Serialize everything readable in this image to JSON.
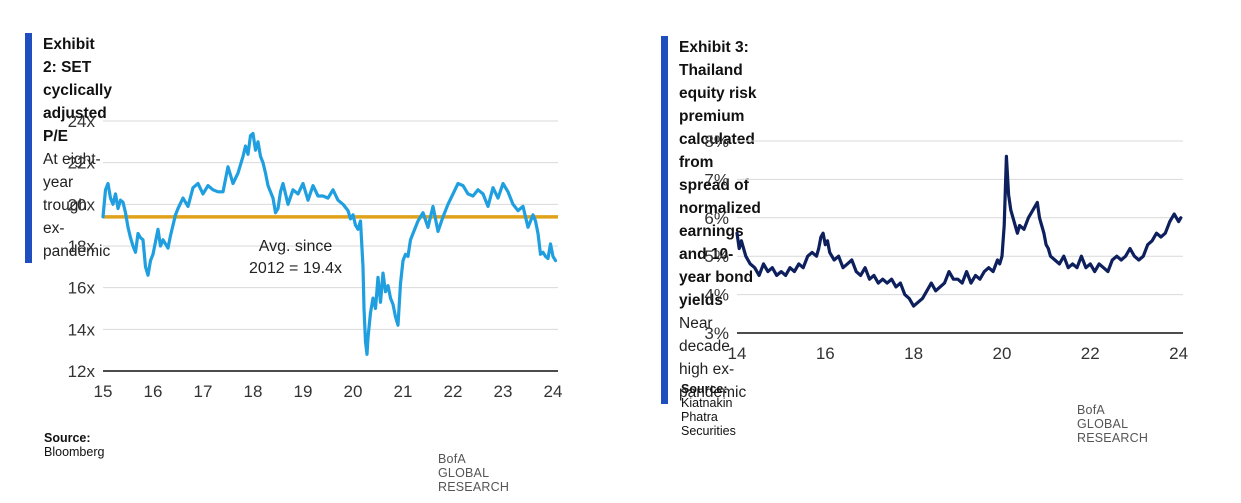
{
  "exhibit2": {
    "title": "Exhibit 2: SET cyclically adjusted P/E",
    "subtitle": "At eight-year trough ex-pandemic",
    "source_label": "Source:",
    "source_text": "Bloomberg",
    "footer": "BofA GLOBAL RESEARCH",
    "line_color": "#1f9fdf",
    "avg_color": "#e0a21b",
    "chart_data": {
      "type": "line",
      "title": "",
      "xlabel": "",
      "ylabel": "",
      "xlim": [
        15,
        24.1
      ],
      "ylim": [
        12,
        24
      ],
      "x_ticks": [
        "15",
        "16",
        "17",
        "18",
        "19",
        "20",
        "21",
        "22",
        "23",
        "24"
      ],
      "y_ticks": [
        "12x",
        "14x",
        "16x",
        "18x",
        "20x",
        "22x",
        "24x"
      ],
      "grid": true,
      "average": {
        "value": 19.4,
        "label_line1": "Avg. since",
        "label_line2": "2012 = 19.4x"
      },
      "series": [
        {
          "x": [
            15.0,
            15.05,
            15.1,
            15.15,
            15.2,
            15.25,
            15.3,
            15.35,
            15.4,
            15.45,
            15.5,
            15.55,
            15.6,
            15.65,
            15.7,
            15.75,
            15.8,
            15.85,
            15.9,
            15.95,
            16.0,
            16.05,
            16.1,
            16.15,
            16.2,
            16.25,
            16.3,
            16.35,
            16.4,
            16.45,
            16.5,
            16.6,
            16.7,
            16.8,
            16.9,
            17.0,
            17.1,
            17.2,
            17.3,
            17.4,
            17.5,
            17.6,
            17.7,
            17.8,
            17.85,
            17.9,
            17.95,
            18.0,
            18.05,
            18.1,
            18.15,
            18.2,
            18.25,
            18.3,
            18.35,
            18.4,
            18.45,
            18.5,
            18.55,
            18.6,
            18.7,
            18.8,
            18.9,
            19.0,
            19.1,
            19.2,
            19.3,
            19.4,
            19.5,
            19.6,
            19.7,
            19.8,
            19.9,
            19.95,
            20.0,
            20.05,
            20.1,
            20.15,
            20.2,
            20.22,
            20.25,
            20.28,
            20.3,
            20.35,
            20.4,
            20.45,
            20.5,
            20.55,
            20.6,
            20.65,
            20.7,
            20.75,
            20.8,
            20.85,
            20.9,
            20.95,
            21.0,
            21.05,
            21.1,
            21.15,
            21.2,
            21.3,
            21.4,
            21.5,
            21.6,
            21.7,
            21.8,
            21.9,
            22.0,
            22.1,
            22.2,
            22.3,
            22.4,
            22.5,
            22.6,
            22.7,
            22.8,
            22.9,
            23.0,
            23.1,
            23.2,
            23.3,
            23.4,
            23.5,
            23.6,
            23.65,
            23.7,
            23.75,
            23.8,
            23.85,
            23.9,
            23.95,
            24.0,
            24.05
          ],
          "values": [
            19.4,
            20.7,
            21.0,
            20.3,
            20.0,
            20.5,
            19.8,
            20.2,
            20.1,
            19.6,
            18.9,
            18.4,
            18.0,
            17.7,
            18.6,
            18.4,
            18.3,
            17.0,
            16.6,
            17.3,
            17.6,
            18.2,
            18.8,
            18.0,
            18.3,
            18.1,
            17.9,
            18.5,
            19.0,
            19.5,
            19.8,
            20.3,
            19.9,
            20.8,
            21.0,
            20.5,
            20.9,
            20.7,
            20.6,
            20.6,
            21.8,
            21.0,
            21.5,
            22.3,
            22.8,
            22.4,
            23.3,
            23.4,
            22.6,
            23.0,
            22.3,
            22.0,
            21.5,
            20.9,
            20.6,
            20.3,
            19.6,
            19.8,
            20.6,
            21.0,
            20.0,
            20.7,
            20.5,
            21.0,
            20.2,
            20.9,
            20.4,
            20.4,
            20.3,
            20.7,
            20.2,
            20.0,
            19.7,
            19.3,
            19.5,
            19.0,
            18.8,
            19.2,
            17.0,
            15.0,
            13.4,
            12.8,
            13.6,
            14.8,
            15.5,
            15.0,
            16.5,
            15.3,
            16.7,
            15.8,
            16.1,
            15.5,
            15.2,
            14.6,
            14.2,
            16.2,
            17.3,
            17.6,
            17.5,
            18.3,
            18.6,
            19.2,
            19.6,
            18.9,
            19.9,
            18.7,
            19.4,
            20.0,
            20.5,
            21.0,
            20.9,
            20.5,
            20.4,
            20.7,
            20.5,
            19.9,
            20.8,
            20.3,
            21.0,
            20.6,
            20.0,
            19.7,
            19.9,
            18.9,
            19.5,
            19.2,
            18.6,
            17.6,
            17.7,
            17.5,
            17.4,
            18.1,
            17.5,
            17.3
          ]
        }
      ]
    }
  },
  "exhibit3": {
    "title_line1": "Exhibit 3: Thailand equity risk premium calculated from spread of",
    "title_line2": "normalized earnings and 10-year bond yields",
    "subtitle": "Near decade high ex-pandemic",
    "source_label": "Source:",
    "source_text": "Kiatnakin Phatra Securities",
    "footer": "BofA GLOBAL RESEARCH",
    "line_color": "#0d1f5c",
    "chart_data": {
      "type": "line",
      "title": "",
      "xlabel": "",
      "ylabel": "",
      "xlim": [
        14,
        24.1
      ],
      "ylim": [
        3,
        8
      ],
      "x_ticks": [
        "14",
        "16",
        "18",
        "20",
        "22",
        "24"
      ],
      "y_ticks": [
        "3%",
        "4%",
        "5%",
        "6%",
        "7%",
        "8%"
      ],
      "grid": true,
      "series": [
        {
          "x": [
            14.0,
            14.05,
            14.1,
            14.2,
            14.3,
            14.4,
            14.5,
            14.6,
            14.7,
            14.8,
            14.9,
            15.0,
            15.1,
            15.2,
            15.3,
            15.4,
            15.5,
            15.6,
            15.7,
            15.8,
            15.85,
            15.9,
            15.95,
            16.0,
            16.05,
            16.1,
            16.2,
            16.3,
            16.4,
            16.5,
            16.6,
            16.7,
            16.8,
            16.9,
            17.0,
            17.1,
            17.2,
            17.3,
            17.4,
            17.5,
            17.6,
            17.7,
            17.8,
            17.9,
            18.0,
            18.1,
            18.2,
            18.3,
            18.4,
            18.5,
            18.6,
            18.7,
            18.8,
            18.9,
            19.0,
            19.1,
            19.2,
            19.3,
            19.4,
            19.5,
            19.6,
            19.7,
            19.8,
            19.9,
            19.95,
            20.0,
            20.05,
            20.1,
            20.15,
            20.2,
            20.25,
            20.3,
            20.35,
            20.4,
            20.5,
            20.6,
            20.7,
            20.8,
            20.85,
            20.9,
            20.95,
            21.0,
            21.05,
            21.1,
            21.2,
            21.3,
            21.4,
            21.5,
            21.6,
            21.7,
            21.8,
            21.9,
            22.0,
            22.1,
            22.2,
            22.3,
            22.4,
            22.5,
            22.6,
            22.7,
            22.8,
            22.9,
            23.0,
            23.1,
            23.2,
            23.3,
            23.4,
            23.5,
            23.6,
            23.7,
            23.8,
            23.9,
            24.0,
            24.05
          ],
          "values": [
            5.6,
            5.2,
            5.4,
            5.0,
            4.8,
            4.7,
            4.5,
            4.8,
            4.6,
            4.7,
            4.5,
            4.6,
            4.5,
            4.7,
            4.6,
            4.8,
            4.7,
            5.0,
            5.1,
            5.0,
            5.2,
            5.5,
            5.6,
            5.3,
            5.4,
            5.1,
            4.9,
            5.0,
            4.7,
            4.8,
            4.9,
            4.6,
            4.5,
            4.7,
            4.4,
            4.5,
            4.3,
            4.4,
            4.3,
            4.4,
            4.2,
            4.3,
            4.0,
            3.9,
            3.7,
            3.8,
            3.9,
            4.1,
            4.3,
            4.1,
            4.2,
            4.3,
            4.6,
            4.4,
            4.4,
            4.3,
            4.6,
            4.3,
            4.5,
            4.4,
            4.6,
            4.7,
            4.6,
            4.9,
            4.8,
            5.0,
            5.8,
            7.6,
            6.6,
            6.2,
            6.0,
            5.8,
            5.6,
            5.8,
            5.7,
            6.0,
            6.2,
            6.4,
            6.0,
            5.8,
            5.6,
            5.3,
            5.2,
            5.0,
            4.9,
            4.8,
            5.0,
            4.7,
            4.8,
            4.7,
            5.0,
            4.7,
            4.8,
            4.6,
            4.8,
            4.7,
            4.6,
            4.9,
            5.0,
            4.9,
            5.0,
            5.2,
            5.0,
            4.9,
            5.0,
            5.3,
            5.4,
            5.6,
            5.5,
            5.6,
            5.9,
            6.1,
            5.9,
            6.0
          ]
        }
      ]
    }
  }
}
